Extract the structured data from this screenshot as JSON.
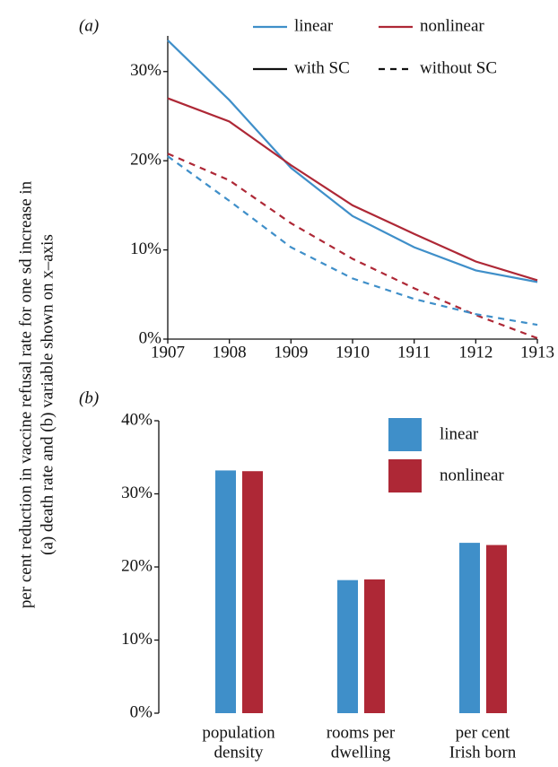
{
  "y_label": [
    "per cent reduction in vaccine refusal rate for one sd increase in",
    "(a) death rate and (b) variable shown on x–axis"
  ],
  "chart_data": [
    {
      "type": "line",
      "panel": "(a)",
      "x": [
        1907,
        1908,
        1909,
        1910,
        1911,
        1912,
        1913
      ],
      "xlim": [
        1907,
        1913
      ],
      "xticks": [
        1907,
        1908,
        1909,
        1910,
        1911,
        1912,
        1913
      ],
      "ylim": [
        0,
        34
      ],
      "yticks": [
        {
          "value": 0,
          "label": "0%"
        },
        {
          "value": 10,
          "label": "10%"
        },
        {
          "value": 20,
          "label": "20%"
        },
        {
          "value": 30,
          "label": "30%"
        }
      ],
      "series": [
        {
          "color": "#3f8fc9",
          "dash": "solid",
          "values": [
            33.5,
            26.8,
            19.2,
            13.8,
            10.3,
            7.7,
            6.4
          ]
        },
        {
          "color": "#ae2836",
          "dash": "solid",
          "values": [
            27.0,
            24.4,
            19.5,
            15.0,
            11.8,
            8.7,
            6.6
          ]
        },
        {
          "color": "#ae2836",
          "dash": "dashed",
          "values": [
            20.8,
            17.8,
            13.0,
            9.0,
            5.7,
            2.7,
            0.1
          ]
        },
        {
          "color": "#3f8fc9",
          "dash": "dashed",
          "values": [
            20.5,
            15.5,
            10.3,
            6.8,
            4.5,
            2.8,
            1.6
          ]
        }
      ],
      "legend": {
        "colors": [
          {
            "name": "linear",
            "color": "#3f8fc9"
          },
          {
            "name": "nonlinear",
            "color": "#ae2836"
          }
        ],
        "styles": [
          {
            "name": "with SC",
            "dash": "solid"
          },
          {
            "name": "without SC",
            "dash": "dashed"
          }
        ]
      }
    },
    {
      "type": "bar",
      "panel": "(b)",
      "categories": [
        [
          "population",
          "density"
        ],
        [
          "rooms per",
          "dwelling"
        ],
        [
          "per cent",
          "Irish born"
        ]
      ],
      "ylim": [
        0,
        40
      ],
      "yticks": [
        {
          "value": 0,
          "label": "0%"
        },
        {
          "value": 10,
          "label": "10%"
        },
        {
          "value": 20,
          "label": "20%"
        },
        {
          "value": 30,
          "label": "30%"
        },
        {
          "value": 40,
          "label": "40%"
        }
      ],
      "series": [
        {
          "name": "linear",
          "color": "#3f8fc9",
          "values": [
            33.2,
            18.2,
            23.3
          ]
        },
        {
          "name": "nonlinear",
          "color": "#ae2836",
          "values": [
            33.1,
            18.3,
            23.0
          ]
        }
      ],
      "legend": "upper right"
    }
  ]
}
